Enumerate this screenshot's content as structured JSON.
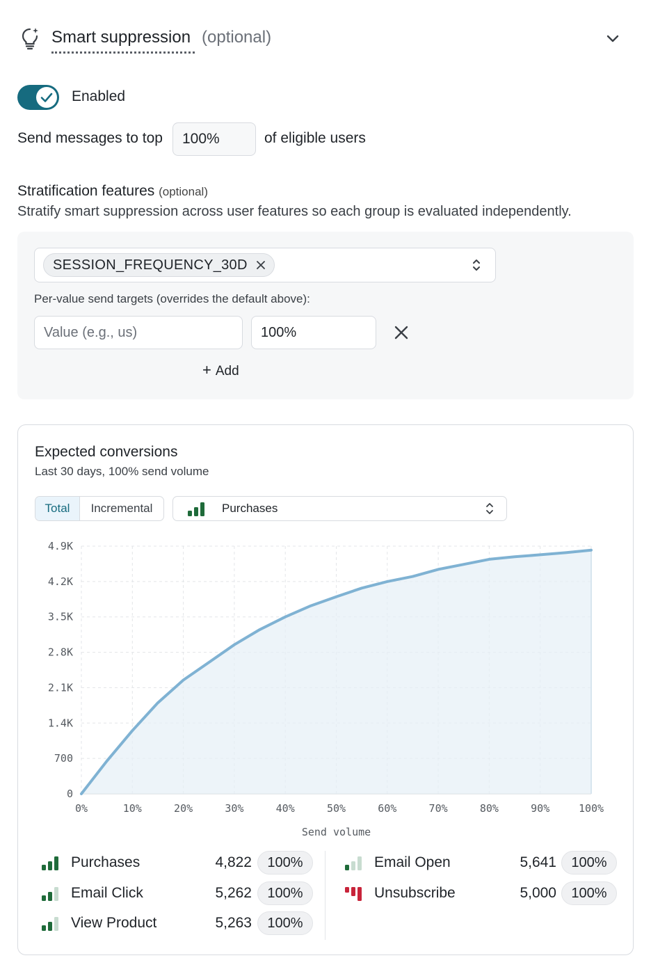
{
  "header": {
    "title": "Smart suppression",
    "optional": "(optional)",
    "icon": "lightbulb-icon"
  },
  "toggle": {
    "enabled": true,
    "label": "Enabled",
    "color": "#166b7f"
  },
  "send": {
    "prefix": "Send messages to top",
    "value": "100%",
    "suffix": "of eligible users"
  },
  "stratification": {
    "title": "Stratification features",
    "optional": "(optional)",
    "description": "Stratify smart suppression across user features so each group is evaluated independently.",
    "selected_feature": "SESSION_FREQUENCY_30D",
    "per_value_label": "Per-value send targets (overrides the default above):",
    "value_placeholder": "Value (e.g., us)",
    "percent_value": "100%",
    "add_label": "Add"
  },
  "card": {
    "title": "Expected conversions",
    "subtitle": "Last 30 days, 100% send volume",
    "segments": [
      "Total",
      "Incremental"
    ],
    "active_segment": "Total",
    "metric": "Purchases"
  },
  "chart_data": {
    "type": "area",
    "xlabel": "Send volume",
    "ylabel": "",
    "x_ticks": [
      "0%",
      "10%",
      "20%",
      "30%",
      "40%",
      "50%",
      "60%",
      "70%",
      "80%",
      "90%",
      "100%"
    ],
    "y_ticks": [
      "0",
      "700",
      "1.4K",
      "2.1K",
      "2.8K",
      "3.5K",
      "4.2K",
      "4.9K"
    ],
    "xlim": [
      0,
      100
    ],
    "ylim": [
      0,
      4900
    ],
    "grid": true,
    "series": [
      {
        "color": "#7fb2d3",
        "x": [
          0,
          5,
          10,
          15,
          20,
          25,
          30,
          35,
          40,
          45,
          50,
          55,
          60,
          65,
          70,
          75,
          80,
          85,
          90,
          95,
          100
        ],
        "y": [
          0,
          650,
          1250,
          1800,
          2250,
          2600,
          2950,
          3250,
          3500,
          3720,
          3900,
          4070,
          4200,
          4300,
          4440,
          4540,
          4640,
          4690,
          4730,
          4770,
          4822
        ]
      }
    ]
  },
  "legend": [
    {
      "name": "Purchases",
      "value": "4,822",
      "percent": "100%",
      "icon": "bars-full-green"
    },
    {
      "name": "Email Click",
      "value": "5,262",
      "percent": "100%",
      "icon": "bars-partial-green"
    },
    {
      "name": "View Product",
      "value": "5,263",
      "percent": "100%",
      "icon": "bars-partial-green"
    },
    {
      "name": "Email Open",
      "value": "5,641",
      "percent": "100%",
      "icon": "bars-low-green"
    },
    {
      "name": "Unsubscribe",
      "value": "5,000",
      "percent": "100%",
      "icon": "bars-red"
    }
  ]
}
